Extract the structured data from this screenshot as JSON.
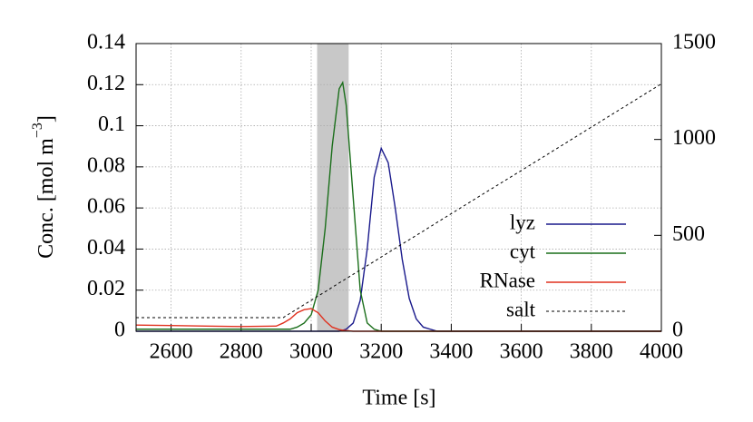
{
  "chart_data": {
    "type": "line",
    "xlabel": "Time [s]",
    "ylabel": [
      "Conc. [mol m",
      "−3",
      "]"
    ],
    "x": [
      2500,
      2600,
      2700,
      2800,
      2900,
      2920,
      2940,
      2960,
      2980,
      3000,
      3020,
      3040,
      3060,
      3080,
      3090,
      3100,
      3120,
      3140,
      3160,
      3180,
      3200,
      3220,
      3240,
      3260,
      3280,
      3300,
      3320,
      3340,
      3360,
      3400,
      3500,
      3600,
      3700,
      3800,
      3900,
      4000
    ],
    "series": [
      {
        "name": "lyz",
        "color": "#1a1a8c",
        "dash": false,
        "values": [
          0,
          0,
          0,
          0,
          0,
          0,
          0,
          0,
          0,
          0,
          0,
          0,
          0,
          0,
          0.0005,
          0.001,
          0.004,
          0.015,
          0.04,
          0.075,
          0.089,
          0.082,
          0.06,
          0.035,
          0.016,
          0.006,
          0.002,
          0.001,
          0,
          0,
          0,
          0,
          0,
          0,
          0,
          0
        ]
      },
      {
        "name": "cyt",
        "color": "#1a6e1a",
        "dash": false,
        "values": [
          0.001,
          0.001,
          0.001,
          0.001,
          0.001,
          0.001,
          0.001,
          0.002,
          0.004,
          0.008,
          0.02,
          0.05,
          0.09,
          0.118,
          0.121,
          0.11,
          0.065,
          0.02,
          0.004,
          0.001,
          0,
          0,
          0,
          0,
          0,
          0,
          0,
          0,
          0,
          0,
          0,
          0,
          0,
          0,
          0,
          0
        ]
      },
      {
        "name": "RNase",
        "color": "#e0301e",
        "dash": false,
        "values": [
          0.003,
          0.0028,
          0.0025,
          0.0023,
          0.0025,
          0.004,
          0.006,
          0.009,
          0.0105,
          0.011,
          0.009,
          0.005,
          0.002,
          0.0008,
          0.0005,
          0.0003,
          0,
          0,
          0,
          0,
          0,
          0,
          0,
          0,
          0,
          0,
          0,
          0,
          0,
          0,
          0,
          0,
          0,
          0,
          0,
          0
        ]
      },
      {
        "name": "salt",
        "color": "#000000",
        "dash": true,
        "axis": "y2",
        "values": [
          71,
          71,
          71,
          71,
          71,
          71,
          94,
          116,
          139,
          161,
          184,
          206,
          229,
          252,
          263,
          274,
          297,
          319,
          342,
          364,
          387,
          410,
          432,
          455,
          477,
          500,
          522,
          545,
          568,
          613,
          726,
          838,
          951,
          1064,
          1177,
          1290
        ]
      }
    ],
    "shade": [
      3017,
      3107
    ],
    "shade_color": "#c8c8c8",
    "xlim": [
      2500,
      4000
    ],
    "xticks": [
      2600,
      2800,
      3000,
      3200,
      3400,
      3600,
      3800,
      4000
    ],
    "ylim": [
      0,
      0.14
    ],
    "yticks": [
      0,
      0.02,
      0.04,
      0.06,
      0.08,
      0.1,
      0.12,
      0.14
    ],
    "y2lim": [
      0,
      1500
    ],
    "y2ticks": [
      0,
      500,
      1000,
      1500
    ],
    "grid": true,
    "legend": "lower right"
  }
}
